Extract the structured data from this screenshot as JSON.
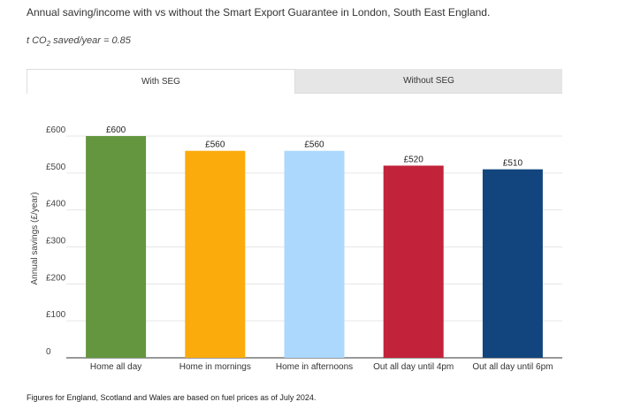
{
  "title": "Annual saving/income with vs without the Smart Export Guarantee in London, South East England.",
  "subtitle": {
    "prefix": "t CO",
    "sub": "2",
    "suffix": " saved/year = 0.85"
  },
  "tabs": [
    {
      "label": "With SEG",
      "active": true
    },
    {
      "label": "Without SEG",
      "active": false
    }
  ],
  "footnote": "Figures for England, Scotland and Wales are based on fuel prices as of July 2024.",
  "chart_data": {
    "type": "bar",
    "title": "",
    "xlabel": "",
    "ylabel": "Annual savings (£/year)",
    "ylim": [
      0,
      600
    ],
    "yticks": [
      0,
      100,
      200,
      300,
      400,
      500,
      600
    ],
    "ytick_labels": [
      "0",
      "£100",
      "£200",
      "£300",
      "£400",
      "£500",
      "£600"
    ],
    "grid": true,
    "categories": [
      "Home all day",
      "Home in mornings",
      "Home in afternoons",
      "Out all day until 4pm",
      "Out all day until 6pm"
    ],
    "values": [
      600,
      560,
      560,
      520,
      510
    ],
    "data_labels": [
      "£600",
      "£560",
      "£560",
      "£520",
      "£510"
    ],
    "colors": [
      "#64963f",
      "#fbab0c",
      "#acd8fd",
      "#c2233a",
      "#12457d"
    ]
  }
}
